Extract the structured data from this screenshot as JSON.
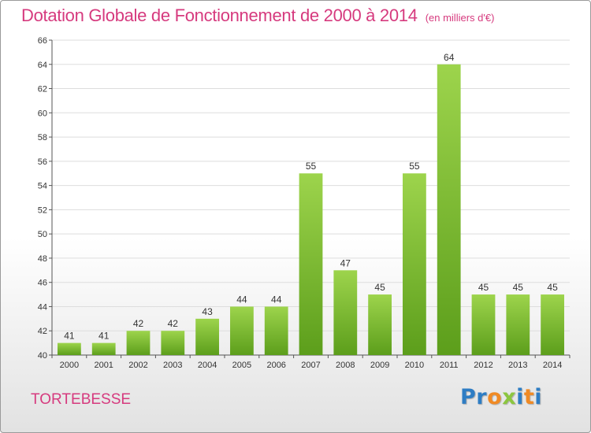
{
  "header": {
    "title": "Dotation Globale de Fonctionnement de 2000 à 2014",
    "unit_note": "(en milliers d'€)"
  },
  "footer": {
    "commune": "TORTEBESSE",
    "logo_letters": [
      {
        "char": "P",
        "color": "#2e7dc4"
      },
      {
        "char": "r",
        "color": "#2e7dc4"
      },
      {
        "char": "o",
        "color": "#f08a24"
      },
      {
        "char": "x",
        "color": "#8cc63f"
      },
      {
        "char": "i",
        "color": "#2e7dc4"
      },
      {
        "char": "t",
        "color": "#f08a24"
      },
      {
        "char": "i",
        "color": "#2e7dc4"
      }
    ]
  },
  "chart_data": {
    "type": "bar",
    "title": "Dotation Globale de Fonctionnement de 2000 à 2014",
    "subtitle": "(en milliers d'€)",
    "xlabel": "",
    "ylabel": "",
    "categories": [
      "2000",
      "2001",
      "2002",
      "2003",
      "2004",
      "2005",
      "2006",
      "2007",
      "2008",
      "2009",
      "2010",
      "2011",
      "2012",
      "2013",
      "2014"
    ],
    "values": [
      41,
      41,
      42,
      42,
      43,
      44,
      44,
      55,
      47,
      45,
      55,
      64,
      45,
      45,
      45
    ],
    "ylim": [
      40,
      66
    ],
    "yticks": [
      40,
      42,
      44,
      46,
      48,
      50,
      52,
      54,
      56,
      58,
      60,
      62,
      64,
      66
    ],
    "grid": true,
    "legend": "none",
    "colors": {
      "bar_light": "#9dd44c",
      "bar_dark": "#5c9e1b",
      "grid": "#dddddd",
      "axis": "#555555"
    }
  }
}
